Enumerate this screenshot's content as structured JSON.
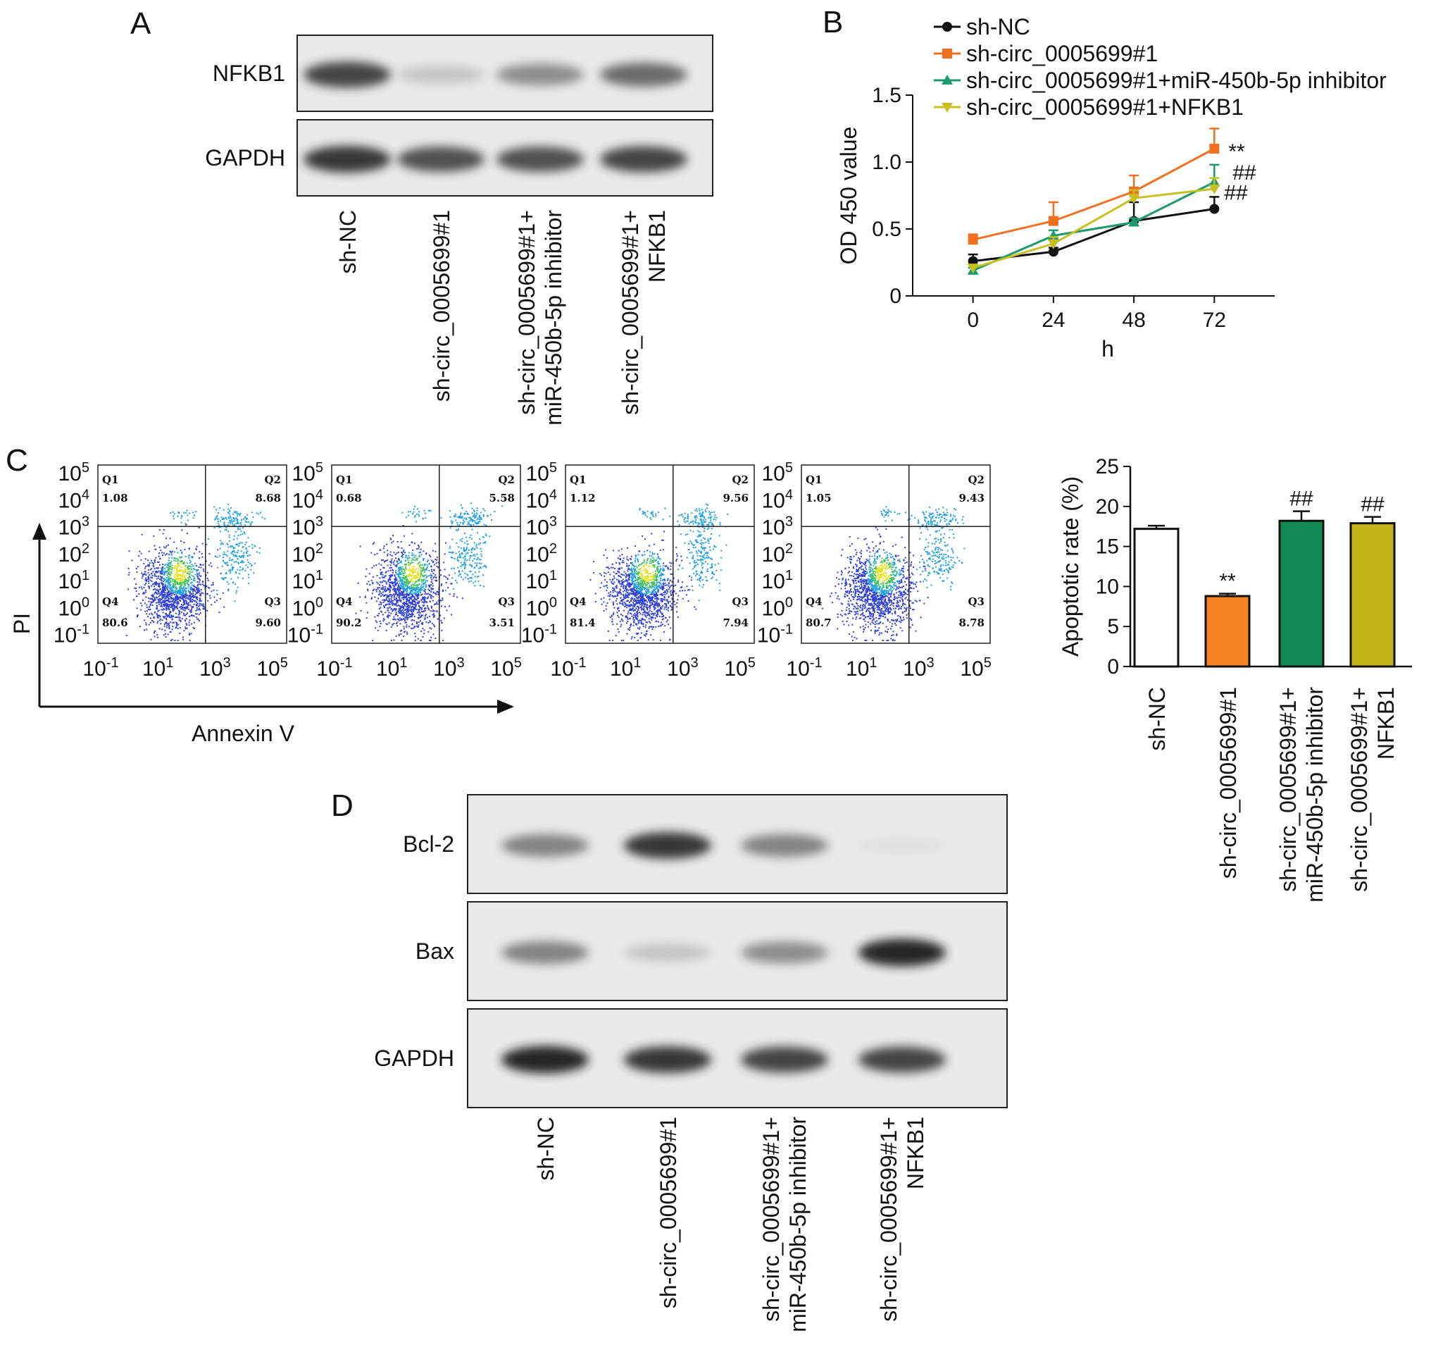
{
  "groups": [
    "sh-NC",
    "sh-circ_0005699#1",
    "sh-circ_0005699#1+ miR-450b-5p inhibitor",
    "sh-circ_0005699#1+ NFKB1"
  ],
  "panel_a": {
    "letter": "A",
    "blots": [
      {
        "label": "NFKB1",
        "intensities": [
          0.85,
          0.25,
          0.55,
          0.7
        ]
      },
      {
        "label": "GAPDH",
        "intensities": [
          0.9,
          0.8,
          0.8,
          0.85
        ]
      }
    ]
  },
  "panel_b": {
    "letter": "B",
    "ylabel": "OD 450 value",
    "xlabel": "h",
    "xticks": [
      "0",
      "24",
      "48",
      "72"
    ],
    "yticks": [
      "0",
      "0.5",
      "1.0",
      "1.5"
    ],
    "legend": [
      "sh-NC",
      "sh-circ_0005699#1",
      "sh-circ_0005699#1+miR-450b-5p inhibitor",
      "sh-circ_0005699#1+NFKB1"
    ],
    "significance": [
      "**",
      "##",
      "##"
    ]
  },
  "panel_c": {
    "letter": "C",
    "flow_ylabel": "PI",
    "flow_xlabel": "Annexin V",
    "log_tick_labels": [
      "10",
      "10",
      "10",
      "10",
      "10",
      "10",
      "10"
    ],
    "plots": [
      {
        "q1": "1.08",
        "q2": "8.68",
        "q3": "9.60",
        "q4": "80.6"
      },
      {
        "q1": "0.68",
        "q2": "5.58",
        "q3": "3.51",
        "q4": "90.2"
      },
      {
        "q1": "1.12",
        "q2": "9.56",
        "q3": "7.94",
        "q4": "81.4"
      },
      {
        "q1": "1.05",
        "q2": "9.43",
        "q3": "8.78",
        "q4": "80.7"
      }
    ],
    "quadrant_names": [
      "Q1",
      "Q2",
      "Q3",
      "Q4"
    ],
    "bar_ylabel": "Apoptotic rate (%)",
    "bar_yticks": [
      "0",
      "5",
      "10",
      "15",
      "20",
      "25"
    ],
    "bar_significance": [
      "",
      "**",
      "##",
      "##"
    ]
  },
  "panel_d": {
    "letter": "D",
    "blots": [
      {
        "label": "Bcl-2",
        "intensities": [
          0.6,
          0.9,
          0.6,
          0.05
        ]
      },
      {
        "label": "Bax",
        "intensities": [
          0.6,
          0.25,
          0.55,
          0.95
        ]
      },
      {
        "label": "GAPDH",
        "intensities": [
          0.95,
          0.9,
          0.85,
          0.85
        ]
      }
    ]
  },
  "colors": {
    "sh_nc": "#111111",
    "sh_circ": "#f07020",
    "inhibitor": "#1a9a70",
    "nfkb1": "#c8c020",
    "bar_nc": "#ffffff",
    "bar_circ": "#f58220",
    "bar_inhibitor": "#128a55",
    "bar_nfkb1": "#c2b51a"
  },
  "chart_data": [
    {
      "type": "line",
      "x": [
        0,
        24,
        48,
        72
      ],
      "xlabel": "h",
      "ylabel": "OD 450 value",
      "ylim": [
        0,
        1.5
      ],
      "series": [
        {
          "name": "sh-NC",
          "values": [
            0.26,
            0.33,
            0.56,
            0.65
          ],
          "errors": [
            0.05,
            0.03,
            0.14,
            0.09
          ]
        },
        {
          "name": "sh-circ_0005699#1",
          "values": [
            0.42,
            0.56,
            0.78,
            1.1
          ],
          "errors": [
            0.04,
            0.14,
            0.12,
            0.15
          ]
        },
        {
          "name": "sh-circ_0005699#1+miR-450b-5p inhibitor",
          "values": [
            0.19,
            0.45,
            0.55,
            0.85
          ],
          "errors": [
            0.02,
            0.04,
            0.03,
            0.13
          ]
        },
        {
          "name": "sh-circ_0005699#1+NFKB1",
          "values": [
            0.21,
            0.39,
            0.73,
            0.8
          ],
          "errors": [
            0.02,
            0.05,
            0.06,
            0.08
          ]
        }
      ],
      "grid": false,
      "legend": "top-left"
    },
    {
      "type": "bar",
      "categories": [
        "sh-NC",
        "sh-circ_0005699#1",
        "sh-circ_0005699#1+ miR-450b-5p inhibitor",
        "sh-circ_0005699#1+ NFKB1"
      ],
      "values": [
        17.2,
        8.8,
        18.2,
        17.9
      ],
      "errors": [
        0.4,
        0.3,
        1.2,
        0.8
      ],
      "ylabel": "Apoptotic rate (%)",
      "ylim": [
        0,
        25
      ]
    }
  ]
}
